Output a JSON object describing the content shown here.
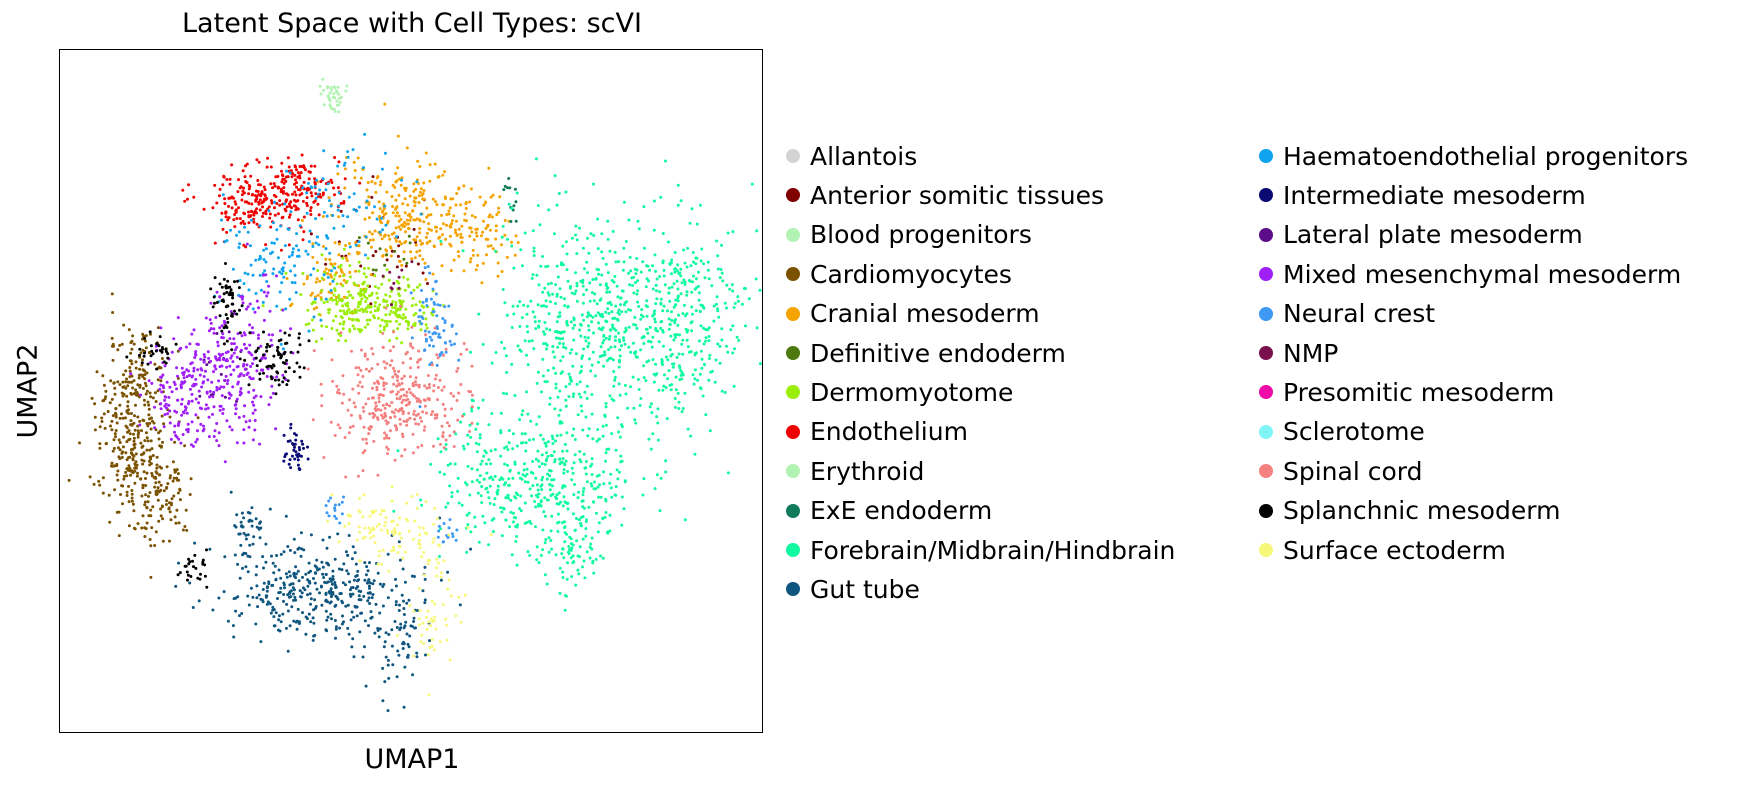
{
  "chart_data": {
    "type": "scatter",
    "title": "Latent Space with Cell Types: scVI",
    "xlabel": "UMAP1",
    "ylabel": "UMAP2",
    "ticks": "none",
    "grid": false,
    "legend_position": "right",
    "series": [
      {
        "name": "Allantois",
        "color": "#d3d3d3",
        "clusters": []
      },
      {
        "name": "Anterior somitic tissues",
        "color": "#800000",
        "clusters": [
          {
            "x": 0.46,
            "y": 0.29,
            "sx": 0.05,
            "sy": 0.04,
            "n": 30
          }
        ]
      },
      {
        "name": "Blood progenitors",
        "color": "#b2f2b2",
        "clusters": []
      },
      {
        "name": "Cardiomyocytes",
        "color": "#7a5200",
        "clusters": [
          {
            "x": 0.1,
            "y": 0.56,
            "sx": 0.025,
            "sy": 0.06,
            "n": 280
          },
          {
            "x": 0.14,
            "y": 0.64,
            "sx": 0.025,
            "sy": 0.04,
            "n": 120
          },
          {
            "x": 0.12,
            "y": 0.46,
            "sx": 0.02,
            "sy": 0.03,
            "n": 60
          }
        ]
      },
      {
        "name": "Cranial mesoderm",
        "color": "#f5a300",
        "clusters": [
          {
            "x": 0.49,
            "y": 0.24,
            "sx": 0.05,
            "sy": 0.04,
            "n": 260
          },
          {
            "x": 0.58,
            "y": 0.27,
            "sx": 0.03,
            "sy": 0.03,
            "n": 90
          },
          {
            "x": 0.39,
            "y": 0.33,
            "sx": 0.03,
            "sy": 0.03,
            "n": 70
          }
        ]
      },
      {
        "name": "Definitive endoderm",
        "color": "#4d7a0f",
        "clusters": [
          {
            "x": 0.47,
            "y": 0.3,
            "sx": 0.02,
            "sy": 0.02,
            "n": 12
          }
        ]
      },
      {
        "name": "Dermomyotome",
        "color": "#9aee07",
        "clusters": [
          {
            "x": 0.42,
            "y": 0.37,
            "sx": 0.035,
            "sy": 0.025,
            "n": 200
          },
          {
            "x": 0.49,
            "y": 0.38,
            "sx": 0.02,
            "sy": 0.02,
            "n": 80
          }
        ]
      },
      {
        "name": "Endothelium",
        "color": "#f00000",
        "clusters": [
          {
            "x": 0.28,
            "y": 0.22,
            "sx": 0.04,
            "sy": 0.025,
            "n": 200
          },
          {
            "x": 0.34,
            "y": 0.2,
            "sx": 0.03,
            "sy": 0.02,
            "n": 110
          }
        ]
      },
      {
        "name": "Erythroid",
        "color": "#b2f2b2",
        "clusters": [
          {
            "x": 0.385,
            "y": 0.065,
            "sx": 0.008,
            "sy": 0.012,
            "n": 40
          }
        ]
      },
      {
        "name": "ExE endoderm",
        "color": "#117a5b",
        "clusters": [
          {
            "x": 0.64,
            "y": 0.21,
            "sx": 0.004,
            "sy": 0.02,
            "n": 12
          }
        ]
      },
      {
        "name": "Forebrain/Midbrain/Hindbrain",
        "color": "#0ff9a0",
        "clusters": [
          {
            "x": 0.74,
            "y": 0.4,
            "sx": 0.06,
            "sy": 0.08,
            "n": 450
          },
          {
            "x": 0.87,
            "y": 0.4,
            "sx": 0.05,
            "sy": 0.08,
            "n": 380
          },
          {
            "x": 0.68,
            "y": 0.63,
            "sx": 0.07,
            "sy": 0.05,
            "n": 420
          },
          {
            "x": 0.73,
            "y": 0.72,
            "sx": 0.03,
            "sy": 0.03,
            "n": 80
          }
        ]
      },
      {
        "name": "Gut tube",
        "color": "#0f567f",
        "clusters": [
          {
            "x": 0.36,
            "y": 0.79,
            "sx": 0.07,
            "sy": 0.035,
            "n": 380
          },
          {
            "x": 0.27,
            "y": 0.7,
            "sx": 0.012,
            "sy": 0.02,
            "n": 40
          },
          {
            "x": 0.48,
            "y": 0.85,
            "sx": 0.02,
            "sy": 0.05,
            "n": 70
          }
        ]
      },
      {
        "name": "Haematoendothelial progenitors",
        "color": "#0fa3f0",
        "clusters": [
          {
            "x": 0.31,
            "y": 0.3,
            "sx": 0.04,
            "sy": 0.05,
            "n": 120
          },
          {
            "x": 0.41,
            "y": 0.22,
            "sx": 0.04,
            "sy": 0.04,
            "n": 60
          }
        ]
      },
      {
        "name": "Intermediate mesoderm",
        "color": "#0a0a75",
        "clusters": [
          {
            "x": 0.335,
            "y": 0.58,
            "sx": 0.008,
            "sy": 0.015,
            "n": 40
          }
        ]
      },
      {
        "name": "Lateral plate mesoderm",
        "color": "#5b0d8a",
        "clusters": [
          {
            "x": 0.23,
            "y": 0.48,
            "sx": 0.02,
            "sy": 0.03,
            "n": 15
          }
        ]
      },
      {
        "name": "Mixed mesenchymal mesoderm",
        "color": "#a01ff7",
        "clusters": [
          {
            "x": 0.19,
            "y": 0.5,
            "sx": 0.035,
            "sy": 0.04,
            "n": 200
          },
          {
            "x": 0.26,
            "y": 0.46,
            "sx": 0.03,
            "sy": 0.06,
            "n": 180
          }
        ]
      },
      {
        "name": "Neural crest",
        "color": "#3d99f2",
        "clusters": [
          {
            "x": 0.53,
            "y": 0.4,
            "sx": 0.015,
            "sy": 0.04,
            "n": 70
          },
          {
            "x": 0.39,
            "y": 0.67,
            "sx": 0.01,
            "sy": 0.01,
            "n": 15
          },
          {
            "x": 0.55,
            "y": 0.71,
            "sx": 0.01,
            "sy": 0.01,
            "n": 15
          }
        ]
      },
      {
        "name": "NMP",
        "color": "#7a0f4d",
        "clusters": [
          {
            "x": 0.46,
            "y": 0.33,
            "sx": 0.02,
            "sy": 0.02,
            "n": 10
          }
        ]
      },
      {
        "name": "Presomitic mesoderm",
        "color": "#f00aa8",
        "clusters": []
      },
      {
        "name": "Sclerotome",
        "color": "#7ff5f5",
        "clusters": []
      },
      {
        "name": "Spinal cord",
        "color": "#f58080",
        "clusters": [
          {
            "x": 0.48,
            "y": 0.51,
            "sx": 0.05,
            "sy": 0.04,
            "n": 330
          }
        ]
      },
      {
        "name": "Splanchnic mesoderm",
        "color": "#000000",
        "clusters": [
          {
            "x": 0.24,
            "y": 0.37,
            "sx": 0.012,
            "sy": 0.025,
            "n": 60
          },
          {
            "x": 0.31,
            "y": 0.45,
            "sx": 0.02,
            "sy": 0.025,
            "n": 70
          },
          {
            "x": 0.14,
            "y": 0.44,
            "sx": 0.015,
            "sy": 0.01,
            "n": 30
          },
          {
            "x": 0.19,
            "y": 0.76,
            "sx": 0.01,
            "sy": 0.012,
            "n": 25
          }
        ]
      },
      {
        "name": "Surface ectoderm",
        "color": "#f7f77a",
        "clusters": [
          {
            "x": 0.47,
            "y": 0.7,
            "sx": 0.04,
            "sy": 0.025,
            "n": 110
          },
          {
            "x": 0.53,
            "y": 0.83,
            "sx": 0.02,
            "sy": 0.04,
            "n": 50
          }
        ]
      }
    ]
  }
}
